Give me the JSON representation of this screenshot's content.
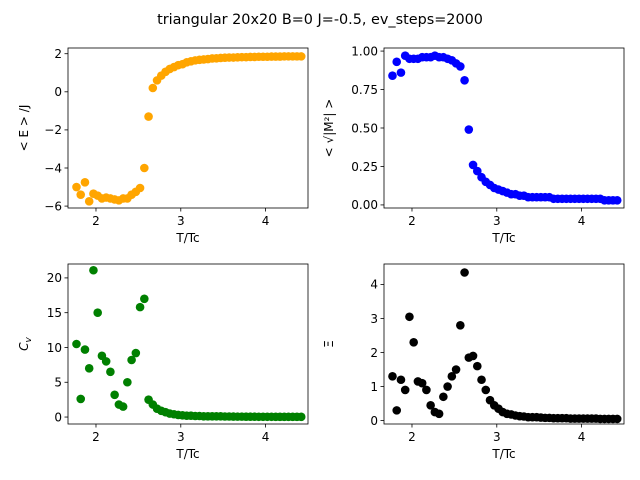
{
  "figure": {
    "suptitle": "triangular 20x20  B=0 J=-0.5, ev_steps=2000"
  },
  "chart_data": [
    {
      "type": "scatter",
      "title": "",
      "xlabel": "T/Tc",
      "ylabel": "< E > /J",
      "color": "#ffa500",
      "xlim": [
        1.67,
        4.5
      ],
      "ylim": [
        -6.1,
        2.3
      ],
      "xticks": [
        2,
        3,
        4
      ],
      "yticks": [
        -6,
        -4,
        -2,
        0,
        2
      ],
      "ytick_labels": [
        "−6",
        "−4",
        "−2",
        "0",
        "2"
      ],
      "x": [
        1.77,
        1.82,
        1.87,
        1.92,
        1.97,
        2.02,
        2.07,
        2.12,
        2.17,
        2.22,
        2.27,
        2.32,
        2.37,
        2.42,
        2.47,
        2.52,
        2.57,
        2.62,
        2.67,
        2.72,
        2.77,
        2.82,
        2.87,
        2.92,
        2.97,
        3.02,
        3.07,
        3.12,
        3.17,
        3.22,
        3.27,
        3.32,
        3.37,
        3.42,
        3.47,
        3.52,
        3.57,
        3.62,
        3.67,
        3.72,
        3.77,
        3.82,
        3.87,
        3.92,
        3.97,
        4.02,
        4.07,
        4.12,
        4.17,
        4.22,
        4.27,
        4.32,
        4.37,
        4.42
      ],
      "y": [
        -5.0,
        -5.4,
        -4.75,
        -5.75,
        -5.35,
        -5.45,
        -5.6,
        -5.55,
        -5.6,
        -5.65,
        -5.7,
        -5.6,
        -5.6,
        -5.4,
        -5.25,
        -5.05,
        -4.0,
        -1.3,
        0.2,
        0.6,
        0.85,
        1.05,
        1.2,
        1.3,
        1.4,
        1.45,
        1.55,
        1.6,
        1.65,
        1.68,
        1.7,
        1.72,
        1.75,
        1.76,
        1.78,
        1.79,
        1.8,
        1.8,
        1.81,
        1.82,
        1.82,
        1.83,
        1.83,
        1.84,
        1.84,
        1.84,
        1.85,
        1.85,
        1.85,
        1.86,
        1.86,
        1.86,
        1.86,
        1.86
      ]
    },
    {
      "type": "scatter",
      "title": "",
      "xlabel": "T/Tc",
      "ylabel": "< √|M²| >",
      "color": "#0000ff",
      "xlim": [
        1.67,
        4.5
      ],
      "ylim": [
        -0.02,
        1.02
      ],
      "xticks": [
        2,
        3,
        4
      ],
      "yticks": [
        0.0,
        0.25,
        0.5,
        0.75,
        1.0
      ],
      "ytick_labels": [
        "0.00",
        "0.25",
        "0.50",
        "0.75",
        "1.00"
      ],
      "x": [
        1.77,
        1.82,
        1.87,
        1.92,
        1.97,
        2.02,
        2.07,
        2.12,
        2.17,
        2.22,
        2.27,
        2.32,
        2.37,
        2.42,
        2.47,
        2.52,
        2.57,
        2.62,
        2.67,
        2.72,
        2.77,
        2.82,
        2.87,
        2.92,
        2.97,
        3.02,
        3.07,
        3.12,
        3.17,
        3.22,
        3.27,
        3.32,
        3.37,
        3.42,
        3.47,
        3.52,
        3.57,
        3.62,
        3.67,
        3.72,
        3.77,
        3.82,
        3.87,
        3.92,
        3.97,
        4.02,
        4.07,
        4.12,
        4.17,
        4.22,
        4.27,
        4.32,
        4.37,
        4.42
      ],
      "y": [
        0.84,
        0.93,
        0.86,
        0.97,
        0.95,
        0.95,
        0.95,
        0.96,
        0.96,
        0.96,
        0.97,
        0.96,
        0.96,
        0.95,
        0.94,
        0.92,
        0.9,
        0.81,
        0.49,
        0.26,
        0.22,
        0.18,
        0.15,
        0.13,
        0.11,
        0.1,
        0.09,
        0.08,
        0.07,
        0.07,
        0.06,
        0.06,
        0.05,
        0.05,
        0.05,
        0.05,
        0.05,
        0.05,
        0.04,
        0.04,
        0.04,
        0.04,
        0.04,
        0.04,
        0.04,
        0.04,
        0.04,
        0.04,
        0.04,
        0.04,
        0.03,
        0.03,
        0.03,
        0.03
      ]
    },
    {
      "type": "scatter",
      "title": "",
      "xlabel": "T/Tc",
      "ylabel": "C_v",
      "color": "#008000",
      "xlim": [
        1.67,
        4.5
      ],
      "ylim": [
        -1.0,
        22.0
      ],
      "xticks": [
        2,
        3,
        4
      ],
      "yticks": [
        0,
        5,
        10,
        15,
        20
      ],
      "ytick_labels": [
        "0",
        "5",
        "10",
        "15",
        "20"
      ],
      "x": [
        1.77,
        1.82,
        1.87,
        1.92,
        1.97,
        2.02,
        2.07,
        2.12,
        2.17,
        2.22,
        2.27,
        2.32,
        2.37,
        2.42,
        2.47,
        2.52,
        2.57,
        2.62,
        2.67,
        2.72,
        2.77,
        2.82,
        2.87,
        2.92,
        2.97,
        3.02,
        3.07,
        3.12,
        3.17,
        3.22,
        3.27,
        3.32,
        3.37,
        3.42,
        3.47,
        3.52,
        3.57,
        3.62,
        3.67,
        3.72,
        3.77,
        3.82,
        3.87,
        3.92,
        3.97,
        4.02,
        4.07,
        4.12,
        4.17,
        4.22,
        4.27,
        4.32,
        4.37,
        4.42
      ],
      "y": [
        10.5,
        2.6,
        9.7,
        7.0,
        21.1,
        15.0,
        8.8,
        8.0,
        6.5,
        3.2,
        1.8,
        1.5,
        5.0,
        8.2,
        9.2,
        15.8,
        17.0,
        2.5,
        1.8,
        1.2,
        0.9,
        0.7,
        0.5,
        0.4,
        0.3,
        0.25,
        0.2,
        0.2,
        0.15,
        0.15,
        0.1,
        0.1,
        0.1,
        0.1,
        0.1,
        0.08,
        0.08,
        0.07,
        0.06,
        0.06,
        0.05,
        0.05,
        0.05,
        0.04,
        0.04,
        0.04,
        0.04,
        0.03,
        0.03,
        0.03,
        0.03,
        0.03,
        0.03,
        0.03
      ]
    },
    {
      "type": "scatter",
      "title": "",
      "xlabel": "T/Tc",
      "ylabel": "Ξ",
      "color": "#000000",
      "xlim": [
        1.67,
        4.5
      ],
      "ylim": [
        -0.1,
        4.6
      ],
      "xticks": [
        2,
        3,
        4
      ],
      "yticks": [
        0,
        1,
        2,
        3,
        4
      ],
      "ytick_labels": [
        "0",
        "1",
        "2",
        "3",
        "4"
      ],
      "x": [
        1.77,
        1.82,
        1.87,
        1.92,
        1.97,
        2.02,
        2.07,
        2.12,
        2.17,
        2.22,
        2.27,
        2.32,
        2.37,
        2.42,
        2.47,
        2.52,
        2.57,
        2.62,
        2.67,
        2.72,
        2.77,
        2.82,
        2.87,
        2.92,
        2.97,
        3.02,
        3.07,
        3.12,
        3.17,
        3.22,
        3.27,
        3.32,
        3.37,
        3.42,
        3.47,
        3.52,
        3.57,
        3.62,
        3.67,
        3.72,
        3.77,
        3.82,
        3.87,
        3.92,
        3.97,
        4.02,
        4.07,
        4.12,
        4.17,
        4.22,
        4.27,
        4.32,
        4.37,
        4.42
      ],
      "y": [
        1.3,
        0.3,
        1.2,
        0.9,
        3.05,
        2.3,
        1.15,
        1.1,
        0.9,
        0.45,
        0.25,
        0.2,
        0.7,
        1.0,
        1.3,
        1.5,
        2.8,
        4.35,
        1.85,
        1.9,
        1.6,
        1.2,
        0.9,
        0.6,
        0.45,
        0.35,
        0.25,
        0.2,
        0.18,
        0.15,
        0.13,
        0.12,
        0.1,
        0.1,
        0.1,
        0.09,
        0.08,
        0.08,
        0.07,
        0.07,
        0.07,
        0.07,
        0.06,
        0.06,
        0.06,
        0.06,
        0.06,
        0.06,
        0.06,
        0.05,
        0.05,
        0.05,
        0.05,
        0.05
      ]
    }
  ]
}
